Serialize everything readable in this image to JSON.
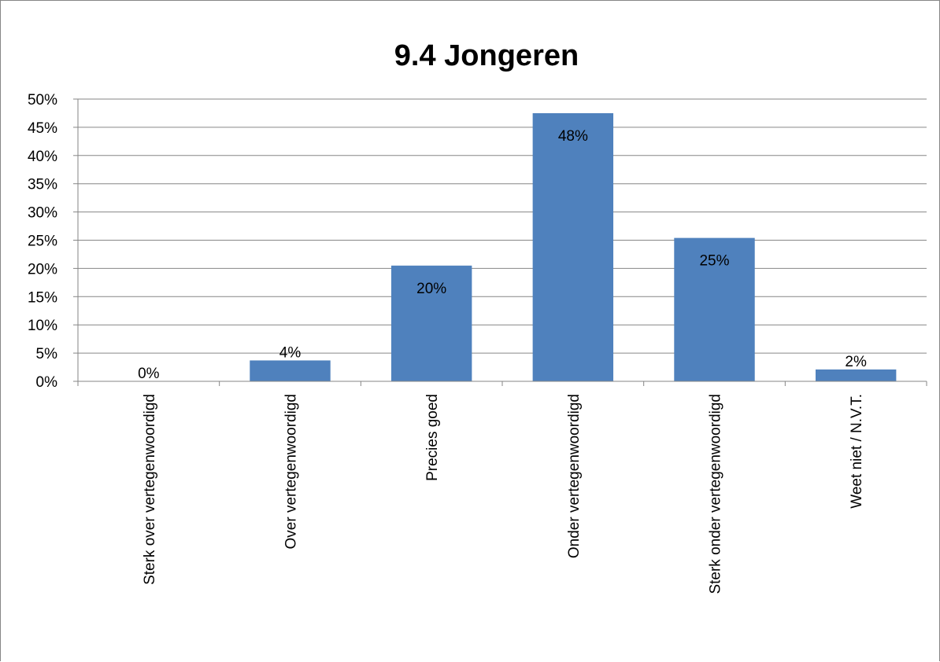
{
  "chart_data": {
    "type": "bar",
    "title": "9.4 Jongeren",
    "categories": [
      "Sterk over vertegenwoordigd",
      "Over vertegenwoordigd",
      "Precies goed",
      "Onder vertegenwoordigd",
      "Sterk onder vertegenwoordigd",
      "Weet niet / N.V.T."
    ],
    "values": [
      0,
      3.7,
      20.5,
      47.5,
      25.4,
      2.1
    ],
    "data_labels": [
      "0%",
      "4%",
      "20%",
      "48%",
      "25%",
      "2%"
    ],
    "y_ticks": [
      "0%",
      "5%",
      "10%",
      "15%",
      "20%",
      "25%",
      "30%",
      "35%",
      "40%",
      "45%",
      "50%"
    ],
    "ylim": [
      0,
      50
    ],
    "grid": true,
    "legend": "none",
    "bar_color": "#4F81BD",
    "grid_color": "#868686"
  }
}
